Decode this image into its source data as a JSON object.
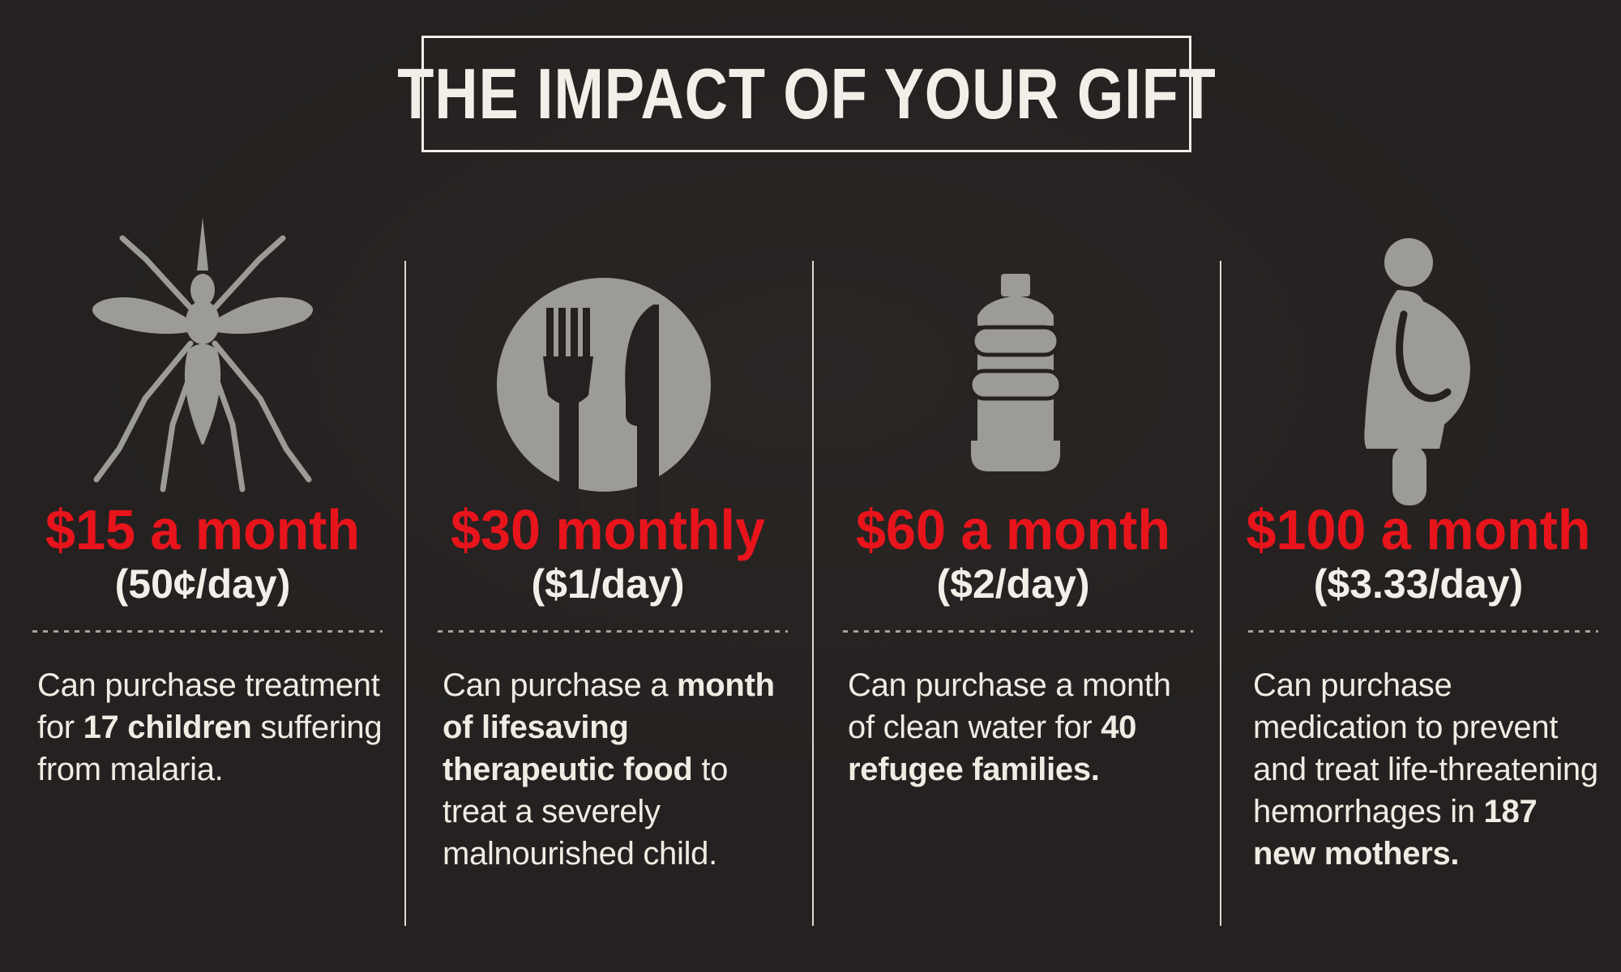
{
  "colors": {
    "background": "#242120",
    "frame_white": "#f2efe8",
    "accent_red": "#e8141c",
    "body_text": "#efece3",
    "icon_gray": "#9c9b97",
    "divider": "#dedbd2",
    "dotted": "#a5a299"
  },
  "header": {
    "title": "THE IMPACT OF YOUR GIFT"
  },
  "columns": [
    {
      "icon": "mosquito-icon",
      "amount": "$15 a month",
      "per_day": "(50¢/day)",
      "description": [
        {
          "text": "Can purchase treatment for ",
          "bold": false
        },
        {
          "text": "17 children",
          "bold": true
        },
        {
          "text": " suffering from malaria.",
          "bold": false
        }
      ]
    },
    {
      "icon": "food-plate-icon",
      "amount": "$30 monthly",
      "per_day": "($1/day)",
      "description": [
        {
          "text": "Can purchase a ",
          "bold": false
        },
        {
          "text": "month of lifesaving therapeutic food",
          "bold": true
        },
        {
          "text": " to treat a severely malnourished child.",
          "bold": false
        }
      ]
    },
    {
      "icon": "water-jug-icon",
      "amount": "$60 a month",
      "per_day": "($2/day)",
      "description": [
        {
          "text": "Can purchase a month of clean water for ",
          "bold": false
        },
        {
          "text": "40 refugee families.",
          "bold": true
        }
      ]
    },
    {
      "icon": "pregnant-woman-icon",
      "amount": "$100 a month",
      "per_day": "($3.33/day)",
      "description": [
        {
          "text": "Can purchase medication to prevent and treat life-threatening hemorrhages in ",
          "bold": false
        },
        {
          "text": "187 new mothers.",
          "bold": true
        }
      ]
    }
  ]
}
